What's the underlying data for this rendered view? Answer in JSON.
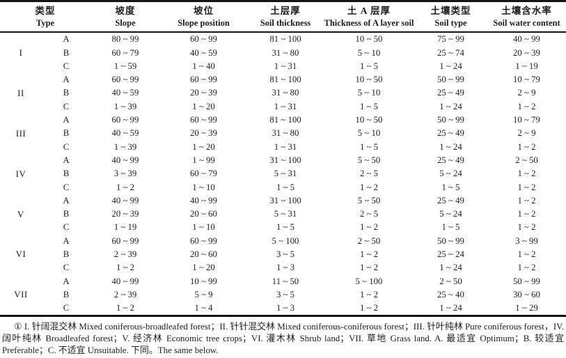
{
  "table": {
    "headers": [
      {
        "zh": "类型",
        "en": "Type"
      },
      {
        "zh": "坡度",
        "en": "Slope"
      },
      {
        "zh": "坡位",
        "en": "Slope position"
      },
      {
        "zh": "土层厚",
        "en": "Soil thickness"
      },
      {
        "zh": "土 A 层厚",
        "en": "Thickness of A layer soil"
      },
      {
        "zh": "土壤类型",
        "en": "Soil type"
      },
      {
        "zh": "土壤含水率",
        "en": "Soil water content"
      }
    ],
    "groups": [
      {
        "type": "I",
        "rows": [
          {
            "grade": "A",
            "values": [
              "80 ~ 99",
              "60 ~ 99",
              "81 ~ 100",
              "10 ~ 50",
              "75 ~ 99",
              "40 ~ 99"
            ]
          },
          {
            "grade": "B",
            "values": [
              "60 ~ 79",
              "40 ~ 59",
              "31 ~ 80",
              "5 ~ 10",
              "25 ~ 74",
              "20 ~ 39"
            ]
          },
          {
            "grade": "C",
            "values": [
              "1 ~ 59",
              "1 ~ 40",
              "1 ~ 31",
              "1 ~ 5",
              "1 ~ 24",
              "1 ~ 19"
            ]
          }
        ]
      },
      {
        "type": "II",
        "rows": [
          {
            "grade": "A",
            "values": [
              "60 ~ 99",
              "60 ~ 99",
              "81 ~ 100",
              "10 ~ 50",
              "50 ~ 99",
              "10 ~ 79"
            ]
          },
          {
            "grade": "B",
            "values": [
              "40 ~ 59",
              "20 ~ 39",
              "31 ~ 80",
              "5 ~ 10",
              "25 ~ 49",
              "2 ~ 9"
            ]
          },
          {
            "grade": "C",
            "values": [
              "1 ~ 39",
              "1 ~ 20",
              "1 ~ 31",
              "1 ~ 5",
              "1 ~ 24",
              "1 ~ 2"
            ]
          }
        ]
      },
      {
        "type": "III",
        "rows": [
          {
            "grade": "A",
            "values": [
              "60 ~ 99",
              "60 ~ 99",
              "81 ~ 100",
              "10 ~ 50",
              "50 ~ 99",
              "10 ~ 79"
            ]
          },
          {
            "grade": "B",
            "values": [
              "40 ~ 59",
              "20 ~ 39",
              "31 ~ 80",
              "5 ~ 10",
              "25 ~ 49",
              "2 ~ 9"
            ]
          },
          {
            "grade": "C",
            "values": [
              "1 ~ 39",
              "1 ~ 20",
              "1 ~ 31",
              "1 ~ 5",
              "1 ~ 24",
              "1 ~ 2"
            ]
          }
        ]
      },
      {
        "type": "IV",
        "rows": [
          {
            "grade": "A",
            "values": [
              "40 ~ 99",
              "1 ~ 99",
              "31 ~ 100",
              "5 ~ 50",
              "25 ~ 49",
              "2 ~ 50"
            ]
          },
          {
            "grade": "B",
            "values": [
              "3 ~ 39",
              "60 ~ 79",
              "5 ~ 31",
              "2 ~ 5",
              "5 ~ 24",
              "1 ~ 2"
            ]
          },
          {
            "grade": "C",
            "values": [
              "1 ~ 2",
              "1 ~ 10",
              "1 ~ 5",
              "1 ~ 2",
              "1 ~ 5",
              "1 ~ 2"
            ]
          }
        ]
      },
      {
        "type": "V",
        "rows": [
          {
            "grade": "A",
            "values": [
              "40 ~ 99",
              "40 ~ 99",
              "31 ~ 100",
              "5 ~ 50",
              "25 ~ 49",
              "1 ~ 2"
            ]
          },
          {
            "grade": "B",
            "values": [
              "20 ~ 39",
              "20 ~ 60",
              "5 ~ 31",
              "2 ~ 5",
              "5 ~ 24",
              "1 ~ 2"
            ]
          },
          {
            "grade": "C",
            "values": [
              "1 ~ 19",
              "1 ~ 10",
              "1 ~ 5",
              "1 ~ 2",
              "1 ~ 5",
              "1 ~ 2"
            ]
          }
        ]
      },
      {
        "type": "VI",
        "rows": [
          {
            "grade": "A",
            "values": [
              "60 ~ 99",
              "60 ~ 99",
              "5 ~ 100",
              "2 ~ 50",
              "50 ~ 99",
              "3 ~ 99"
            ]
          },
          {
            "grade": "B",
            "values": [
              "2 ~ 39",
              "20 ~ 60",
              "3 ~ 5",
              "1 ~ 2",
              "25 ~ 24",
              "1 ~ 2"
            ]
          },
          {
            "grade": "C",
            "values": [
              "1 ~ 2",
              "1 ~ 20",
              "1 ~ 3",
              "1 ~ 2",
              "1 ~ 24",
              "1 ~ 2"
            ]
          }
        ]
      },
      {
        "type": "VII",
        "rows": [
          {
            "grade": "A",
            "values": [
              "40 ~ 99",
              "10 ~ 99",
              "11 ~ 50",
              "5 ~ 100",
              "2 ~ 50",
              "50 ~ 99"
            ]
          },
          {
            "grade": "B",
            "values": [
              "2 ~ 39",
              "5 ~ 9",
              "3 ~ 5",
              "1 ~ 2",
              "25 ~ 40",
              "30 ~ 60"
            ]
          },
          {
            "grade": "C",
            "values": [
              "1 ~ 2",
              "1 ~ 4",
              "1 ~ 3",
              "1 ~ 2",
              "1 ~ 24",
              "1 ~ 29"
            ]
          }
        ]
      }
    ]
  },
  "footnote": "① I. 针阔混交林 Mixed coniferous-broadleafed forest；II. 针针混交林 Mixed coniferous-coniferous forest；III. 针叶纯林 Pure coniferous forest，IV. 阔叶纯林 Broadleafed forest；V. 经济林 Economic tree crops；VI. 灌木林 Shrub land；VII. 草地 Grass land. A. 最适宜 Optimum；B. 较适宜 Preferable；C. 不适宜 Unsuitable. 下同。The same below."
}
